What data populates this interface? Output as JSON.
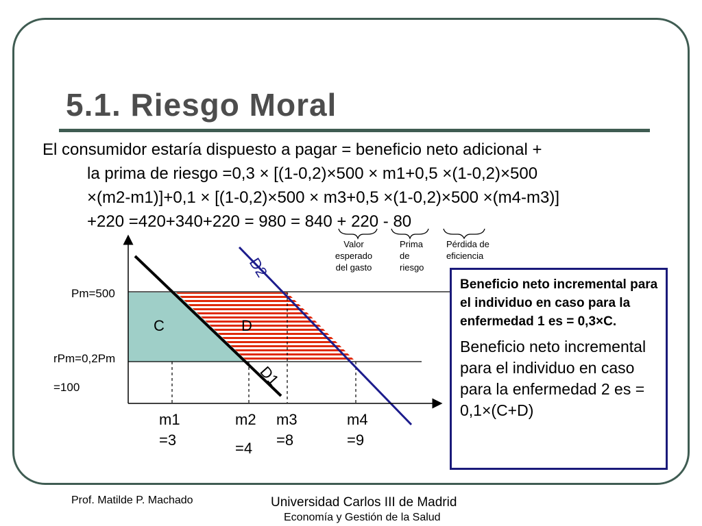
{
  "title": "5.1. Riesgo Moral",
  "body": {
    "line1": "El consumidor estaría dispuesto a pagar = beneficio neto adicional +",
    "line2": "la prima de riesgo =0,3 × [(1-0,2)×500 × m1+0,5 ×(1-0,2)×500",
    "line3": "×(m2-m1)]+0,1 × [(1-0,2)×500 × m3+0,5 ×(1-0,2)×500 ×(m4-m3)]",
    "line4_a": "+220 =420+340+220 = 980 = ",
    "line4_b": "840",
    "line4_c": " + ",
    "line4_d": "220",
    "line4_e": " - ",
    "line4_f": "80"
  },
  "brace_labels": {
    "valor": [
      "Valor",
      "esperado",
      "del gasto"
    ],
    "prima": [
      "Prima",
      "de",
      "riesgo"
    ],
    "perdida": [
      "Pérdida de",
      "eficiencia"
    ]
  },
  "graph": {
    "pm_label": "Pm=500",
    "rpm_label_1": "rPm=0,2Pm",
    "rpm_label_2": "=100",
    "area_c": "C",
    "area_d": "D",
    "curve_d1": "D1",
    "curve_d2": "D2",
    "m1_a": "m1",
    "m1_b": "=3",
    "m2_a": "m2",
    "m2_b": "=4",
    "m3_a": "m3",
    "m3_b": "=8",
    "m4_a": "m4",
    "m4_b": "=9",
    "colors": {
      "area_c": "#9fcfc8",
      "hatch": "#e02a0a",
      "d2_line": "#1c1c8c",
      "d1_line": "#000000"
    }
  },
  "infobox": {
    "p1": "Beneficio neto incremental para el individuo en caso para la enfermedad 1 es = 0,3×C.",
    "p2": "Beneficio neto incremental para el individuo en caso para la enfermedad 2 es = 0,1×(C+D)"
  },
  "footer": {
    "left": "Prof. Matilde P. Machado",
    "right1": "Universidad Carlos III de Madrid",
    "right2": "Economía y Gestión de la Salud"
  }
}
